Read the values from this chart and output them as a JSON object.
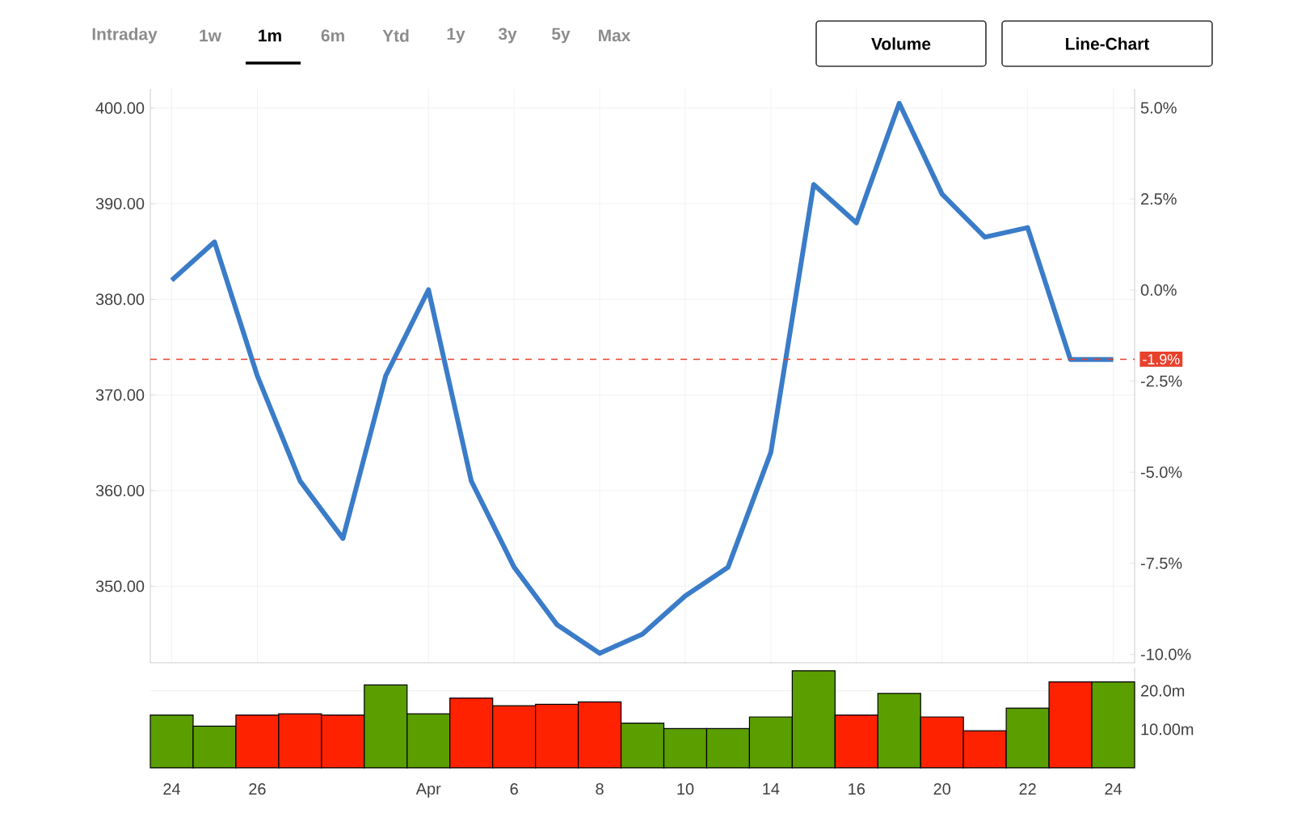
{
  "chart_data": [
    {
      "type": "line",
      "categories": [
        "24",
        null,
        "26",
        null,
        null,
        null,
        "Apr",
        null,
        "6",
        null,
        "8",
        null,
        "10",
        null,
        "14",
        null,
        "16",
        null,
        "20",
        null,
        "22",
        null,
        "24"
      ],
      "series": [
        {
          "color": "#3a7cc8",
          "values": [
            382,
            386,
            372,
            361,
            355,
            372,
            381,
            361,
            352,
            346,
            343,
            345,
            349,
            352,
            364,
            392,
            388,
            400.5,
            391,
            386.5,
            387.5,
            373.7,
            373.7
          ]
        }
      ],
      "ylim": [
        342,
        402
      ],
      "yticks": [
        {
          "value": 350,
          "label": "350.00"
        },
        {
          "value": 360,
          "label": "360.00"
        },
        {
          "value": 370,
          "label": "370.00"
        },
        {
          "value": 380,
          "label": "380.00"
        },
        {
          "value": 390,
          "label": "390.00"
        },
        {
          "value": 400,
          "label": "400.00"
        }
      ],
      "y2lim": [
        -10.23,
        5.52
      ],
      "y2ticks": [
        {
          "value": -10,
          "label": "-10.0%"
        },
        {
          "value": -7.5,
          "label": "-7.5%"
        },
        {
          "value": -5,
          "label": "-5.0%"
        },
        {
          "value": -2.5,
          "label": "-2.5%"
        },
        {
          "value": 0,
          "label": "0.0%"
        },
        {
          "value": 2.5,
          "label": "2.5%"
        },
        {
          "value": 5,
          "label": "5.0%"
        }
      ],
      "ref_lines": [
        {
          "axis": "y2",
          "value": -1.9,
          "label": "-1.9%",
          "color": "#e8412c",
          "line_style": "dashed"
        }
      ],
      "grid": true,
      "annotations": [
        "Intraday",
        "1w",
        "1m",
        "6m",
        "Ytd",
        "1y",
        "3y",
        "5y",
        "Max",
        "Volume",
        "Line-Chart"
      ]
    },
    {
      "type": "bar",
      "categories": [
        null,
        null,
        null,
        null,
        null,
        null,
        null,
        null,
        null,
        null,
        null,
        null,
        null,
        null,
        null,
        null,
        null,
        null,
        null,
        null,
        null,
        null,
        null
      ],
      "tick_labels": "y",
      "values": [
        13.7,
        10.8,
        13.7,
        14.0,
        13.7,
        21.5,
        14.0,
        18.1,
        16.1,
        16.5,
        17.1,
        11.6,
        10.2,
        10.2,
        13.2,
        25.2,
        13.7,
        19.3,
        13.2,
        9.6,
        15.5,
        22.3,
        22.3
      ],
      "colors": [
        "#5a9e00",
        "#5a9e00",
        "#ff2200",
        "#ff2200",
        "#ff2200",
        "#5a9e00",
        "#5a9e00",
        "#ff2200",
        "#ff2200",
        "#ff2200",
        "#ff2200",
        "#5a9e00",
        "#5a9e00",
        "#5a9e00",
        "#5a9e00",
        "#5a9e00",
        "#ff2200",
        "#5a9e00",
        "#ff2200",
        "#ff2200",
        "#5a9e00",
        "#ff2200",
        "#5a9e00"
      ],
      "ylim": [
        0,
        26
      ],
      "yticks": [
        {
          "value": 10,
          "label": "10.00m"
        },
        {
          "value": 20,
          "label": "20.0m"
        }
      ],
      "grid": "y"
    }
  ]
}
